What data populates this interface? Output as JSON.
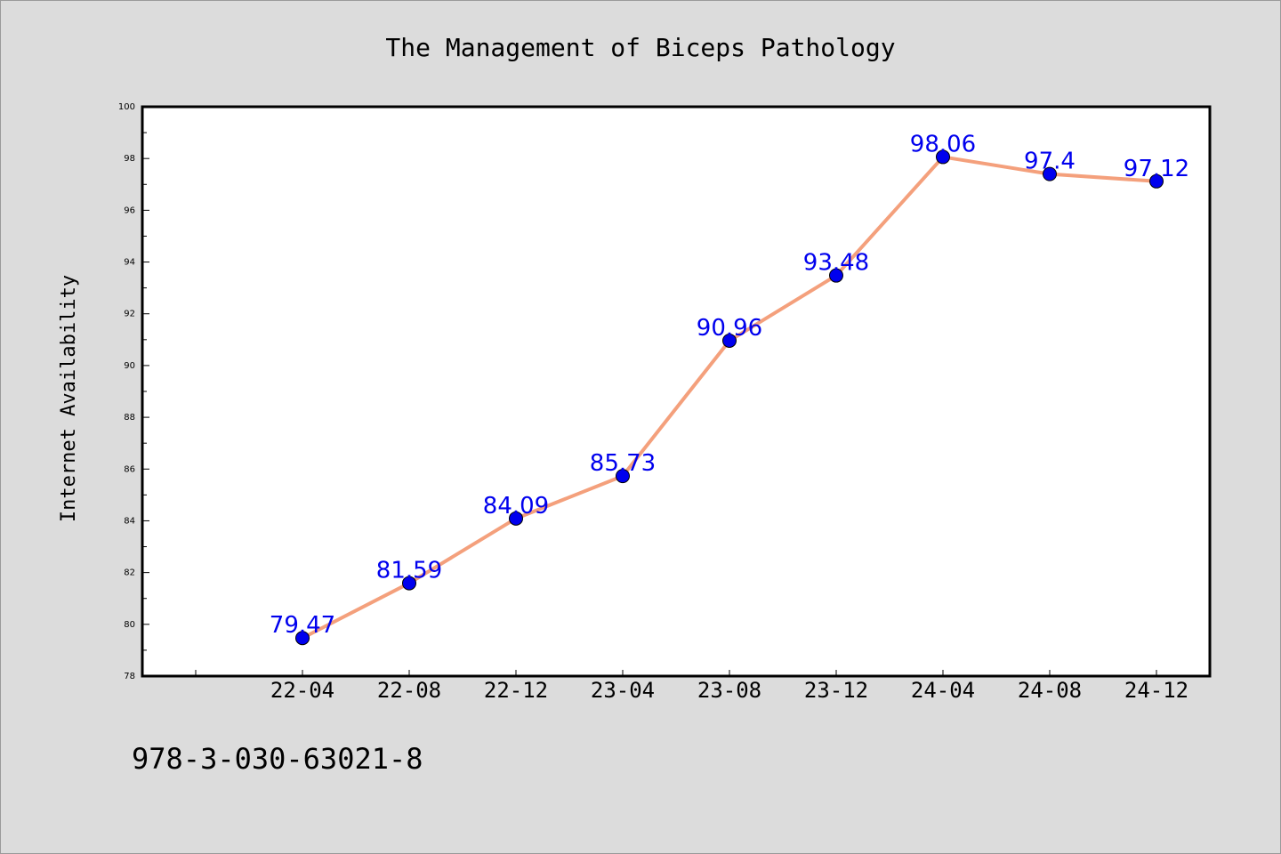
{
  "chart_data": {
    "type": "line",
    "title": "The Management of Biceps Pathology",
    "xlabel": "",
    "ylabel": "Internet Availability",
    "categories": [
      "22-04",
      "22-08",
      "22-12",
      "23-04",
      "23-08",
      "23-12",
      "24-04",
      "24-08",
      "24-12"
    ],
    "series": [
      {
        "values": [
          79.47,
          81.59,
          84.09,
          85.73,
          90.96,
          93.48,
          98.06,
          97.4,
          97.12
        ],
        "labels": [
          "79.47",
          "81.59",
          "84.09",
          "85.73",
          "90.96",
          "93.48",
          "98.06",
          "97.4",
          "97.12"
        ],
        "line_color": "#f4a07c",
        "marker_color": "#0000ee",
        "label_color": "#0000ee"
      }
    ],
    "ylim": [
      78,
      100
    ],
    "yticks": [
      "78",
      "80",
      "82",
      "84",
      "86",
      "88",
      "90",
      "92",
      "94",
      "96",
      "98",
      "100"
    ],
    "grid": false,
    "legend": "none"
  },
  "footer": {
    "text": "978-3-030-63021-8"
  },
  "colors": {
    "background": "#dcdcdc",
    "plot_background": "#ffffff",
    "axis": "#000000"
  }
}
